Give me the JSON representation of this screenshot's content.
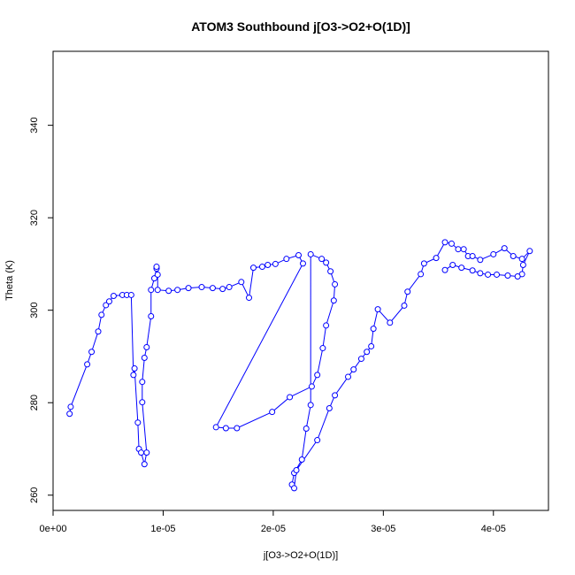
{
  "chart_data": {
    "type": "scatter",
    "title": "ATOM3 Southbound j[O3->O2+O(1D)]",
    "x_label": "j[O3->O2+O(1D)]",
    "y_label": "Theta (K)",
    "series": [
      {
        "color": "#0000ff",
        "x": [
          1.5e-06,
          1.6e-06,
          3.1e-06,
          3.5e-06,
          4.1e-06,
          4.4e-06,
          4.8e-06,
          5.1e-06,
          5.5e-06,
          6.3e-06,
          6.7e-06,
          7.1e-06,
          7.3e-06,
          7.4e-06,
          7.7e-06,
          7.8e-06,
          8e-06,
          8.3e-06,
          8.5e-06,
          8.1e-06,
          8.1e-06,
          8.3e-06,
          8.5e-06,
          8.9e-06,
          8.9e-06,
          9.2e-06,
          9.4e-06,
          9.4e-06,
          9.5e-06,
          9.5e-06,
          1.05e-05,
          1.13e-05,
          1.23e-05,
          1.35e-05,
          1.45e-05,
          1.54e-05,
          1.6e-05,
          1.71e-05,
          1.78e-05,
          1.82e-05,
          1.9e-05,
          1.95e-05,
          2.02e-05,
          2.12e-05,
          2.23e-05,
          2.27e-05,
          1.48e-05,
          1.57e-05,
          1.67e-05,
          1.99e-05,
          2.15e-05,
          2.35e-05,
          2.4e-05,
          2.45e-05,
          2.48e-05,
          2.55e-05,
          2.56e-05,
          2.52e-05,
          2.48e-05,
          2.44e-05,
          2.34e-05,
          2.34e-05,
          2.3e-05,
          2.26e-05,
          2.19e-05,
          2.17e-05,
          2.19e-05,
          2.21e-05,
          2.4e-05,
          2.51e-05,
          2.56e-05,
          2.68e-05,
          2.73e-05,
          2.8e-05,
          2.85e-05,
          2.89e-05,
          2.91e-05,
          2.95e-05,
          3.06e-05,
          3.19e-05,
          3.22e-05,
          3.34e-05,
          3.37e-05,
          3.48e-05,
          3.56e-05,
          3.62e-05,
          3.68e-05,
          3.73e-05,
          3.77e-05,
          3.81e-05,
          3.88e-05,
          4e-05,
          4.1e-05,
          4.18e-05,
          4.26e-05,
          4.33e-05,
          4.27e-05,
          4.26e-05,
          4.22e-05,
          4.13e-05,
          4.03e-05,
          3.95e-05,
          3.88e-05,
          3.81e-05,
          3.71e-05,
          3.63e-05,
          3.56e-05
        ],
        "values": [
          277.6,
          279.1,
          288.3,
          291.0,
          295.4,
          299.0,
          301.1,
          301.9,
          303.1,
          303.3,
          303.3,
          303.3,
          286.0,
          287.4,
          275.7,
          270.0,
          269.2,
          266.7,
          269.2,
          280.1,
          284.5,
          289.7,
          292.0,
          298.7,
          304.4,
          306.9,
          309.0,
          309.4,
          307.7,
          304.4,
          304.2,
          304.4,
          304.8,
          305.0,
          304.8,
          304.6,
          305.0,
          306.1,
          302.7,
          309.2,
          309.4,
          309.8,
          310.0,
          311.1,
          311.9,
          310.1,
          274.7,
          274.5,
          274.5,
          278.0,
          281.2,
          283.5,
          286.0,
          291.8,
          296.7,
          302.1,
          305.6,
          308.4,
          310.3,
          311.1,
          312.1,
          279.5,
          274.4,
          267.7,
          264.8,
          262.3,
          261.5,
          265.4,
          271.9,
          278.8,
          281.6,
          285.6,
          287.2,
          289.5,
          291.0,
          292.2,
          296.0,
          300.2,
          297.3,
          301.0,
          304.0,
          307.8,
          310.1,
          311.3,
          314.7,
          314.4,
          313.2,
          313.2,
          311.7,
          311.7,
          310.9,
          312.1,
          313.4,
          311.7,
          311.1,
          312.8,
          309.8,
          307.8,
          307.3,
          307.5,
          307.7,
          307.7,
          308.0,
          308.6,
          309.2,
          309.8,
          308.7
        ]
      }
    ],
    "xlim": [
      0,
      4.5e-05
    ],
    "xticks": [
      {
        "value": 0,
        "label": "0e+00"
      },
      {
        "value": 1e-05,
        "label": "1e-05"
      },
      {
        "value": 2e-05,
        "label": "2e-05"
      },
      {
        "value": 3e-05,
        "label": "3e-05"
      },
      {
        "value": 4e-05,
        "label": "4e-05"
      }
    ],
    "ylim": [
      256.7,
      356
    ],
    "yticks": [
      260,
      280,
      300,
      320,
      340
    ]
  }
}
